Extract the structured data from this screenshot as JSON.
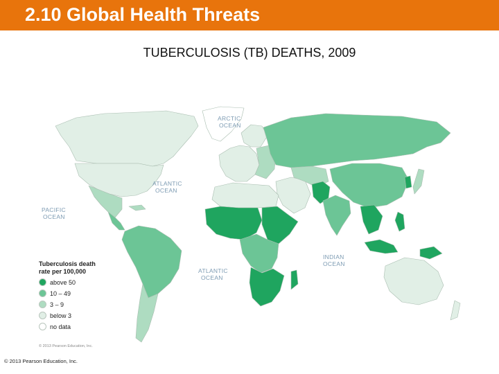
{
  "header": {
    "title": "2.10 Global Health Threats"
  },
  "map": {
    "title": "TUBERCULOSIS (TB) DEATHS, 2009",
    "oceans": [
      {
        "id": "arctic",
        "lines": [
          "ARCTIC",
          "OCEAN"
        ]
      },
      {
        "id": "atlantic-north",
        "lines": [
          "ATLANTIC",
          "OCEAN"
        ]
      },
      {
        "id": "pacific",
        "lines": [
          "PACIFIC",
          "OCEAN"
        ]
      },
      {
        "id": "atlantic-south",
        "lines": [
          "ATLANTIC",
          "OCEAN"
        ]
      },
      {
        "id": "indian",
        "lines": [
          "INDIAN",
          "OCEAN"
        ]
      }
    ],
    "inner_credit": "© 2013 Pearson Education, Inc.",
    "colors": {
      "above_50": "#1fa55f",
      "10_49": "#6cc596",
      "3_9": "#aedcc1",
      "below_3": "#e1efe6",
      "no_data": "#ffffff",
      "border": "#a9bdb0"
    }
  },
  "legend": {
    "title_line1": "Tuberculosis death",
    "title_line2": "rate per 100,000",
    "items": [
      {
        "label": "above 50",
        "color": "#1fa55f"
      },
      {
        "label": "10 – 49",
        "color": "#6cc596"
      },
      {
        "label": "3 – 9",
        "color": "#aedcc1"
      },
      {
        "label": "below 3",
        "color": "#e1efe6"
      },
      {
        "label": "no data",
        "color": "#ffffff"
      }
    ]
  },
  "footer": {
    "copyright": "© 2013 Pearson Education, Inc."
  }
}
